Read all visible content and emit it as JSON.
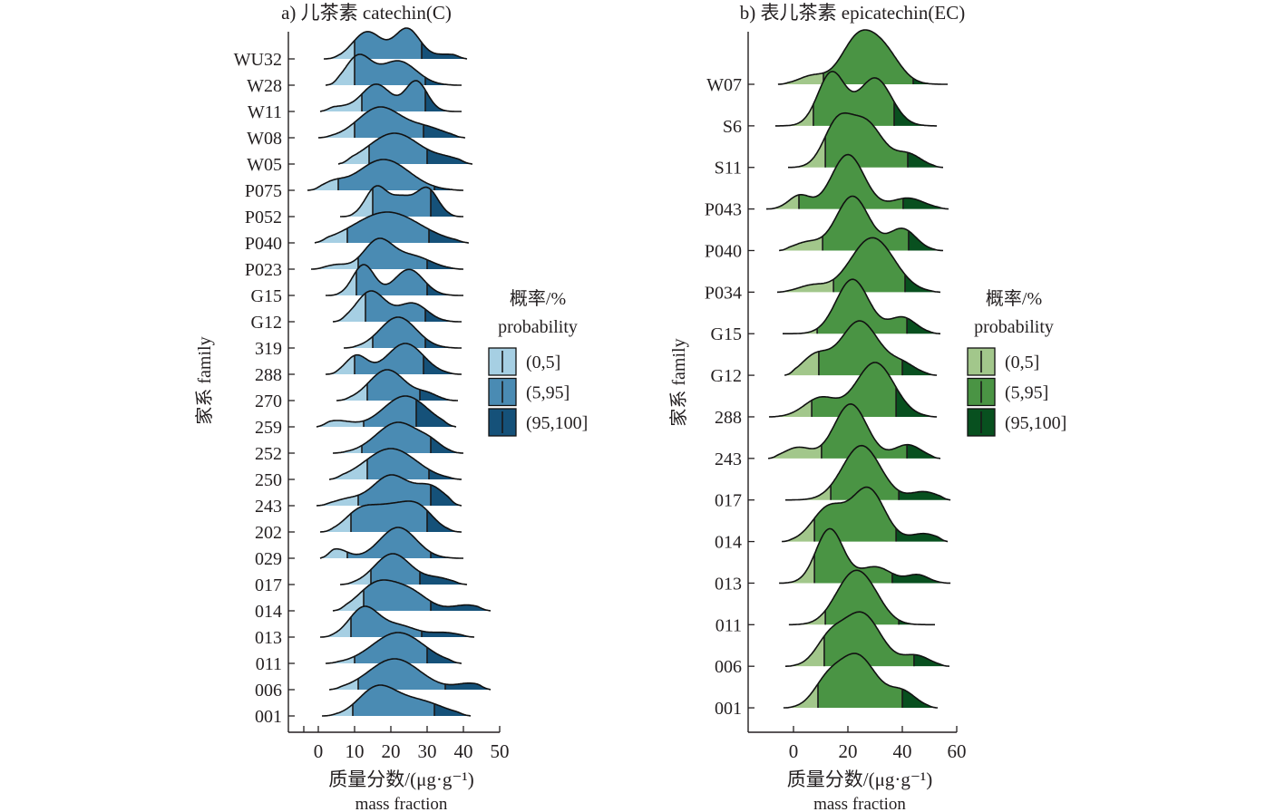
{
  "colors": {
    "blue": [
      "#a6cfe3",
      "#4a8bb3",
      "#155179"
    ],
    "green": [
      "#a2c78b",
      "#4a9444",
      "#08501f"
    ],
    "axis": "#231f20"
  },
  "chart_data": [
    {
      "type": "ridgeline",
      "title": "a) 儿茶素 catechin(C)",
      "xlabel": "质量分数/(μg·g⁻¹)",
      "xlabel_en": "mass fraction",
      "ylabel": "家系 family",
      "xlim": [
        -8,
        50
      ],
      "xticks": [
        0,
        10,
        20,
        30,
        40,
        50
      ],
      "palette": "blue",
      "legend": {
        "title": "概率/%",
        "subtitle": "probability",
        "entries": [
          "(0,5]",
          "(5,95]",
          "(95,100]"
        ],
        "position": "right"
      },
      "series": [
        {
          "name": "WU32",
          "range": [
            1.5,
            41
          ],
          "q5": 10,
          "q95": 28.5,
          "peaks": [
            [
              13.5,
              4,
              0.9
            ],
            [
              24.5,
              3.5,
              1
            ],
            [
              36,
              4,
              0.15
            ]
          ]
        },
        {
          "name": "W28",
          "range": [
            2,
            39.5
          ],
          "q5": 10,
          "q95": 29.5,
          "peaks": [
            [
              11,
              3.5,
              1
            ],
            [
              22,
              5,
              0.85
            ]
          ]
        },
        {
          "name": "W11",
          "range": [
            0.5,
            39.5
          ],
          "q5": 12,
          "q95": 29.5,
          "peaks": [
            [
              16,
              4,
              0.9
            ],
            [
              27,
              3,
              1
            ],
            [
              5,
              4,
              0.15
            ]
          ]
        },
        {
          "name": "W08",
          "range": [
            0,
            40.5
          ],
          "q5": 10,
          "q95": 29,
          "peaks": [
            [
              17,
              6,
              1
            ],
            [
              30,
              5,
              0.3
            ]
          ]
        },
        {
          "name": "W05",
          "range": [
            5.5,
            42.5
          ],
          "q5": 14,
          "q95": 30,
          "peaks": [
            [
              21,
              7,
              1
            ],
            [
              36,
              4,
              0.15
            ]
          ]
        },
        {
          "name": "P075",
          "range": [
            -3,
            40
          ],
          "q5": 5.5,
          "q95": 32,
          "peaks": [
            [
              4,
              3,
              0.2
            ],
            [
              18,
              7,
              1
            ]
          ]
        },
        {
          "name": "P052",
          "range": [
            6,
            40
          ],
          "q5": 15,
          "q95": 31,
          "peaks": [
            [
              16,
              3,
              1
            ],
            [
              30,
              3,
              0.95
            ],
            [
              23,
              3,
              0.6
            ]
          ]
        },
        {
          "name": "P040",
          "range": [
            -1,
            41.5
          ],
          "q5": 8,
          "q95": 30.5,
          "peaks": [
            [
              19,
              9,
              1
            ]
          ]
        },
        {
          "name": "P023",
          "range": [
            -2,
            40
          ],
          "q5": 11,
          "q95": 30,
          "peaks": [
            [
              5,
              3,
              0.15
            ],
            [
              16.5,
              4,
              1
            ],
            [
              26,
              5,
              0.45
            ]
          ]
        },
        {
          "name": "G15",
          "range": [
            2,
            40
          ],
          "q5": 10.5,
          "q95": 30,
          "peaks": [
            [
              12.5,
              3,
              1
            ],
            [
              25,
              4,
              0.85
            ]
          ]
        },
        {
          "name": "G12",
          "range": [
            4,
            39.5
          ],
          "q5": 13,
          "q95": 29.5,
          "peaks": [
            [
              14.5,
              4,
              1
            ],
            [
              26,
              4,
              0.6
            ]
          ]
        },
        {
          "name": "319",
          "range": [
            7,
            39.5
          ],
          "q5": 15,
          "q95": 29.5,
          "peaks": [
            [
              22,
              5,
              1
            ]
          ]
        },
        {
          "name": "288",
          "range": [
            2,
            39.5
          ],
          "q5": 10,
          "q95": 29,
          "peaks": [
            [
              10.5,
              3,
              0.6
            ],
            [
              24,
              5,
              1
            ]
          ]
        },
        {
          "name": "270",
          "range": [
            5,
            38.5
          ],
          "q5": 13.5,
          "q95": 28,
          "peaks": [
            [
              19,
              5,
              1
            ],
            [
              30,
              3,
              0.2
            ]
          ]
        },
        {
          "name": "259",
          "range": [
            -0.5,
            38
          ],
          "q5": 12.5,
          "q95": 27,
          "peaks": [
            [
              5,
              4,
              0.2
            ],
            [
              24,
              6,
              1
            ]
          ]
        },
        {
          "name": "252",
          "range": [
            4,
            40
          ],
          "q5": 12,
          "q95": 31,
          "peaks": [
            [
              22,
              6,
              1
            ],
            [
              31,
              3,
              0.2
            ]
          ]
        },
        {
          "name": "250",
          "range": [
            3,
            39.5
          ],
          "q5": 13.5,
          "q95": 30.5,
          "peaks": [
            [
              20,
              7,
              1
            ]
          ]
        },
        {
          "name": "243",
          "range": [
            -0.5,
            39.5
          ],
          "q5": 11,
          "q95": 31,
          "peaks": [
            [
              20,
              5,
              1
            ],
            [
              31,
              4,
              0.6
            ],
            [
              8,
              4,
              0.2
            ]
          ]
        },
        {
          "name": "202",
          "range": [
            0.5,
            39.5
          ],
          "q5": 9,
          "q95": 30,
          "peaks": [
            [
              11,
              4,
              0.5
            ],
            [
              20,
              6,
              0.8
            ],
            [
              28,
              4,
              0.55
            ]
          ]
        },
        {
          "name": "029",
          "range": [
            0.5,
            40
          ],
          "q5": 8,
          "q95": 31,
          "peaks": [
            [
              5,
              3,
              0.3
            ],
            [
              22,
              5,
              1
            ]
          ]
        },
        {
          "name": "017",
          "range": [
            6,
            41
          ],
          "q5": 14.5,
          "q95": 28,
          "peaks": [
            [
              20.5,
              5,
              1
            ],
            [
              33,
              4,
              0.2
            ]
          ]
        },
        {
          "name": "014",
          "range": [
            4,
            47.5
          ],
          "q5": 12.5,
          "q95": 31,
          "peaks": [
            [
              16,
              5,
              0.9
            ],
            [
              25,
              5,
              0.65
            ],
            [
              41,
              4,
              0.2
            ]
          ]
        },
        {
          "name": "013",
          "range": [
            0.5,
            43
          ],
          "q5": 9,
          "q95": 28.5,
          "peaks": [
            [
              12.5,
              4,
              1
            ],
            [
              22,
              5,
              0.4
            ],
            [
              35,
              4,
              0.15
            ]
          ]
        },
        {
          "name": "011",
          "range": [
            2,
            39.5
          ],
          "q5": 10,
          "q95": 30,
          "peaks": [
            [
              22,
              7,
              1
            ]
          ]
        },
        {
          "name": "006",
          "range": [
            3,
            47.5
          ],
          "q5": 11,
          "q95": 35,
          "peaks": [
            [
              21,
              7,
              1
            ],
            [
              42,
              4,
              0.2
            ]
          ]
        },
        {
          "name": "001",
          "range": [
            1,
            42
          ],
          "q5": 9.5,
          "q95": 32,
          "peaks": [
            [
              16,
              5,
              1
            ],
            [
              27,
              7,
              0.6
            ]
          ]
        }
      ]
    },
    {
      "type": "ridgeline",
      "title": "b) 表儿茶素 epicatechin(EC)",
      "xlabel": "质量分数/(μg·g⁻¹)",
      "xlabel_en": "mass fraction",
      "ylabel": "家系 family",
      "xlim": [
        -16,
        60
      ],
      "xticks": [
        0,
        20,
        40,
        60
      ],
      "palette": "green",
      "legend": {
        "title": "概率/%",
        "subtitle": "probability",
        "entries": [
          "(0,5]",
          "(5,95]",
          "(95,100]"
        ],
        "position": "right"
      },
      "series": [
        {
          "name": "W07",
          "range": [
            -5.7,
            56.7
          ],
          "q5": 11,
          "q95": 44,
          "peaks": [
            [
              23.3,
              6,
              1
            ],
            [
              33,
              6,
              0.75
            ],
            [
              7,
              5,
              0.2
            ]
          ]
        },
        {
          "name": "S6",
          "range": [
            -6.7,
            52.7
          ],
          "q5": 7.3,
          "q95": 37,
          "peaks": [
            [
              14,
              5,
              1
            ],
            [
              30,
              6,
              0.9
            ]
          ]
        },
        {
          "name": "S11",
          "range": [
            -2,
            55
          ],
          "q5": 11.7,
          "q95": 42,
          "peaks": [
            [
              16,
              5,
              0.95
            ],
            [
              26.7,
              6,
              1
            ],
            [
              42,
              5,
              0.3
            ]
          ]
        },
        {
          "name": "P043",
          "range": [
            -10,
            57
          ],
          "q5": 2,
          "q95": 40.3,
          "peaks": [
            [
              20,
              6,
              1
            ],
            [
              2.3,
              4,
              0.25
            ],
            [
              42,
              6,
              0.2
            ]
          ]
        },
        {
          "name": "P040",
          "range": [
            -5.3,
            55
          ],
          "q5": 10.7,
          "q95": 42.3,
          "peaks": [
            [
              21.7,
              6,
              1
            ],
            [
              40,
              5,
              0.4
            ],
            [
              5,
              5,
              0.15
            ]
          ]
        },
        {
          "name": "P034",
          "range": [
            -6,
            54
          ],
          "q5": 14.7,
          "q95": 41,
          "peaks": [
            [
              29,
              8,
              1
            ],
            [
              6.7,
              5,
              0.12
            ]
          ]
        },
        {
          "name": "G15",
          "range": [
            -4,
            54
          ],
          "q5": 8.7,
          "q95": 41.7,
          "peaks": [
            [
              21.7,
              6,
              1
            ],
            [
              40,
              5,
              0.3
            ]
          ]
        },
        {
          "name": "G12",
          "range": [
            -3.3,
            52.7
          ],
          "q5": 9.3,
          "q95": 40,
          "peaks": [
            [
              24.3,
              7,
              1
            ],
            [
              8,
              5,
              0.35
            ],
            [
              40,
              5,
              0.2
            ]
          ]
        },
        {
          "name": "288",
          "range": [
            -9,
            52.7
          ],
          "q5": 6.7,
          "q95": 37.7,
          "peaks": [
            [
              30,
              7,
              1
            ],
            [
              10,
              6,
              0.35
            ]
          ]
        },
        {
          "name": "243",
          "range": [
            -9.3,
            54
          ],
          "q5": 10.3,
          "q95": 41.7,
          "peaks": [
            [
              21,
              6,
              1
            ],
            [
              42,
              5,
              0.25
            ],
            [
              1.7,
              5,
              0.2
            ]
          ]
        },
        {
          "name": "017",
          "range": [
            -3,
            57.7
          ],
          "q5": 13.7,
          "q95": 38.7,
          "peaks": [
            [
              25,
              7,
              1
            ],
            [
              48,
              5,
              0.15
            ]
          ]
        },
        {
          "name": "014",
          "range": [
            -4.3,
            56.7
          ],
          "q5": 7.7,
          "q95": 37.7,
          "peaks": [
            [
              27.5,
              6,
              1
            ],
            [
              13,
              6,
              0.65
            ],
            [
              48,
              5,
              0.15
            ]
          ]
        },
        {
          "name": "013",
          "range": [
            -5.3,
            57.7
          ],
          "q5": 7.7,
          "q95": 36.3,
          "peaks": [
            [
              13.3,
              5,
              1
            ],
            [
              30,
              6,
              0.3
            ],
            [
              45.7,
              4,
              0.15
            ]
          ]
        },
        {
          "name": "011",
          "range": [
            -1.7,
            52
          ],
          "q5": 11.7,
          "q95": 38.7,
          "peaks": [
            [
              20,
              6,
              0.95
            ],
            [
              27,
              6,
              0.85
            ]
          ]
        },
        {
          "name": "006",
          "range": [
            -3,
            57.3
          ],
          "q5": 11.3,
          "q95": 44.3,
          "peaks": [
            [
              25,
              7,
              1
            ],
            [
              13,
              5,
              0.45
            ],
            [
              45,
              5,
              0.2
            ]
          ]
        },
        {
          "name": "001",
          "range": [
            -3.7,
            53
          ],
          "q5": 9,
          "q95": 40,
          "peaks": [
            [
              23.3,
              7,
              1
            ],
            [
              12,
              5,
              0.4
            ],
            [
              40,
              5,
              0.3
            ]
          ]
        }
      ]
    }
  ]
}
